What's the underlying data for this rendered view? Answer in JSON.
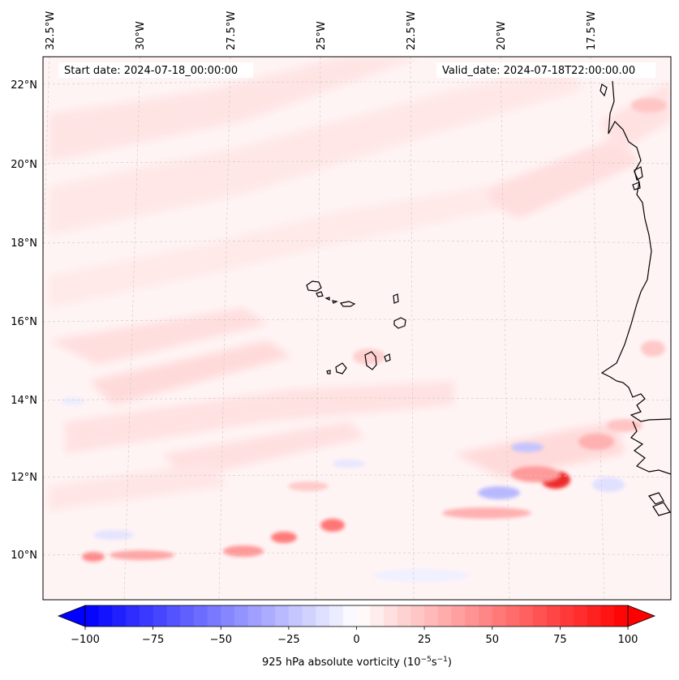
{
  "header": {
    "start_date": "Start date: 2024-07-18_00:00:00",
    "valid_date": "Valid_date: 2024-07-18T22:00:00.00"
  },
  "axes": {
    "lon_labels": [
      "32.5°W",
      "30°W",
      "27.5°W",
      "25°W",
      "22.5°W",
      "20°W",
      "17.5°W"
    ],
    "lat_labels": [
      "22°N",
      "20°N",
      "18°N",
      "16°N",
      "14°N",
      "12°N",
      "10°N"
    ],
    "gridlines": true
  },
  "colorbar": {
    "ticks": [
      "−100",
      "−75",
      "−50",
      "−25",
      "0",
      "25",
      "50",
      "75",
      "100"
    ],
    "title_main": "925 hPa absolute vorticity (10",
    "title_exp1": "−5",
    "title_mid": "s",
    "title_exp2": "−1",
    "title_end": ")",
    "min": -100,
    "max": 100,
    "colormap": "bwr",
    "extend": "both"
  },
  "colors": {
    "positive_max": "#ff0000",
    "negative_max": "#0000ff",
    "neutral": "#ffffff",
    "coastline": "#000000"
  },
  "map": {
    "features": [
      "Cape Verde islands",
      "West African coastline"
    ],
    "field": "925 hPa absolute vorticity"
  }
}
